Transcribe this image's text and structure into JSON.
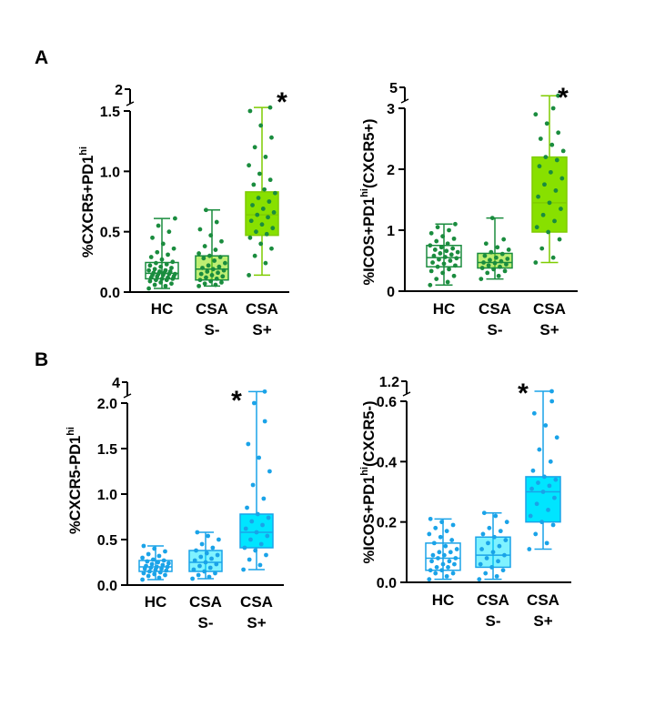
{
  "panels": [
    {
      "letter": "A"
    },
    {
      "letter": "B"
    }
  ],
  "colors": {
    "dark_green": "#1a8c3e",
    "light_green": "#7fcc00",
    "light_green_fill": "#88e000",
    "blue": "#1aa3e8",
    "cyan_fill": "#00e5ff",
    "axis": "#000000"
  },
  "chart_data": [
    {
      "type": "box",
      "panel": "A",
      "ylabel": "%CXCR5+PD1",
      "ylabel_sup": "hi",
      "ylabel_suffix": "",
      "yticks": [
        "0.0",
        "0.5",
        "1.0",
        "1.5"
      ],
      "ytick_values": [
        0,
        0.5,
        1.0,
        1.5
      ],
      "ylim": [
        0,
        1.5
      ],
      "axis_break": {
        "from": 1.5,
        "to": 2,
        "label": "2"
      },
      "categories": [
        [
          "HC"
        ],
        [
          "CSA",
          "S-"
        ],
        [
          "CSA",
          "S+"
        ]
      ],
      "groups": [
        {
          "min": 0.03,
          "q1": 0.11,
          "median": 0.155,
          "q3": 0.245,
          "max": 0.61,
          "style": "outline",
          "points": [
            0.03,
            0.05,
            0.06,
            0.07,
            0.08,
            0.09,
            0.1,
            0.1,
            0.11,
            0.11,
            0.12,
            0.12,
            0.13,
            0.13,
            0.14,
            0.14,
            0.15,
            0.15,
            0.15,
            0.16,
            0.16,
            0.17,
            0.17,
            0.18,
            0.18,
            0.19,
            0.2,
            0.21,
            0.22,
            0.23,
            0.24,
            0.25,
            0.27,
            0.29,
            0.31,
            0.33,
            0.36,
            0.4,
            0.45,
            0.5,
            0.55,
            0.61
          ]
        },
        {
          "min": 0.05,
          "q1": 0.1,
          "median": 0.19,
          "q3": 0.3,
          "max": 0.68,
          "style": "filled-light",
          "points": [
            0.05,
            0.06,
            0.07,
            0.08,
            0.09,
            0.1,
            0.11,
            0.12,
            0.13,
            0.14,
            0.15,
            0.16,
            0.17,
            0.18,
            0.19,
            0.2,
            0.21,
            0.22,
            0.24,
            0.26,
            0.28,
            0.29,
            0.3,
            0.32,
            0.35,
            0.38,
            0.42,
            0.47,
            0.52,
            0.58,
            0.68
          ]
        },
        {
          "min": 0.14,
          "q1": 0.47,
          "median": 0.64,
          "q3": 0.83,
          "max": 1.5,
          "style": "filled",
          "points": [
            0.14,
            0.24,
            0.3,
            0.36,
            0.4,
            0.45,
            0.48,
            0.5,
            0.53,
            0.56,
            0.59,
            0.62,
            0.64,
            0.66,
            0.69,
            0.72,
            0.75,
            0.78,
            0.82,
            0.85,
            0.89,
            0.93,
            0.98,
            1.05,
            1.12,
            1.2,
            1.28,
            1.38,
            1.5
          ],
          "broken_max": 1.58,
          "significance": "*"
        }
      ]
    },
    {
      "type": "box",
      "panel": "A",
      "ylabel": "%ICOS+PD1",
      "ylabel_sup": "hi",
      "ylabel_suffix": "(CXCR5+)",
      "yticks": [
        "0",
        "1",
        "2",
        "3"
      ],
      "ytick_values": [
        0,
        1,
        2,
        3
      ],
      "ylim": [
        0,
        3
      ],
      "axis_break": {
        "from": 3,
        "to": 5,
        "label": "5"
      },
      "categories": [
        [
          "HC"
        ],
        [
          "CSA",
          "S-"
        ],
        [
          "CSA",
          "S+"
        ]
      ],
      "groups": [
        {
          "min": 0.1,
          "q1": 0.4,
          "median": 0.55,
          "q3": 0.75,
          "max": 1.1,
          "style": "outline",
          "points": [
            0.1,
            0.15,
            0.2,
            0.25,
            0.3,
            0.33,
            0.36,
            0.4,
            0.42,
            0.45,
            0.47,
            0.5,
            0.52,
            0.54,
            0.56,
            0.58,
            0.6,
            0.62,
            0.64,
            0.66,
            0.68,
            0.7,
            0.72,
            0.75,
            0.78,
            0.82,
            0.86,
            0.9,
            0.95,
            1.0,
            1.05,
            1.1
          ]
        },
        {
          "min": 0.2,
          "q1": 0.38,
          "median": 0.47,
          "q3": 0.62,
          "max": 1.2,
          "style": "filled-light",
          "points": [
            0.2,
            0.25,
            0.3,
            0.33,
            0.36,
            0.38,
            0.4,
            0.42,
            0.44,
            0.46,
            0.47,
            0.49,
            0.51,
            0.53,
            0.55,
            0.58,
            0.61,
            0.64,
            0.68,
            0.72,
            0.78,
            0.85,
            1.2
          ]
        },
        {
          "min": 0.47,
          "q1": 0.97,
          "median": 1.45,
          "q3": 2.2,
          "max": 3.0,
          "style": "filled",
          "points": [
            0.47,
            0.55,
            0.7,
            0.85,
            0.97,
            1.05,
            1.15,
            1.25,
            1.35,
            1.45,
            1.55,
            1.65,
            1.75,
            1.85,
            1.95,
            2.05,
            2.15,
            2.2,
            2.3,
            2.4,
            2.5,
            2.6,
            2.75,
            2.9,
            3.0
          ],
          "broken_max": 4.2,
          "significance": "*"
        }
      ]
    },
    {
      "type": "box",
      "panel": "B",
      "ylabel": "%CXCR5-PD1",
      "ylabel_sup": "hi",
      "ylabel_suffix": "",
      "yticks": [
        "0.0",
        "0.5",
        "1.0",
        "1.5",
        "2.0"
      ],
      "ytick_values": [
        0,
        0.5,
        1.0,
        1.5,
        2.0
      ],
      "ylim": [
        0,
        2.0
      ],
      "axis_break": {
        "from": 2.0,
        "to": 4,
        "label": "4"
      },
      "categories": [
        [
          "HC"
        ],
        [
          "CSA",
          "S-"
        ],
        [
          "CSA",
          "S+"
        ]
      ],
      "groups": [
        {
          "min": 0.06,
          "q1": 0.15,
          "median": 0.2,
          "q3": 0.27,
          "max": 0.43,
          "style": "outline",
          "points": [
            0.06,
            0.08,
            0.1,
            0.11,
            0.12,
            0.13,
            0.14,
            0.15,
            0.16,
            0.17,
            0.18,
            0.18,
            0.19,
            0.2,
            0.2,
            0.21,
            0.22,
            0.23,
            0.24,
            0.25,
            0.26,
            0.27,
            0.28,
            0.3,
            0.32,
            0.34,
            0.37,
            0.4,
            0.43
          ]
        },
        {
          "min": 0.07,
          "q1": 0.15,
          "median": 0.25,
          "q3": 0.38,
          "max": 0.58,
          "style": "filled-light",
          "points": [
            0.07,
            0.09,
            0.11,
            0.13,
            0.15,
            0.17,
            0.19,
            0.21,
            0.23,
            0.25,
            0.27,
            0.29,
            0.31,
            0.33,
            0.35,
            0.38,
            0.41,
            0.45,
            0.5,
            0.54,
            0.58
          ]
        },
        {
          "min": 0.17,
          "q1": 0.41,
          "median": 0.58,
          "q3": 0.78,
          "max": 2.0,
          "style": "filled",
          "points": [
            0.17,
            0.22,
            0.28,
            0.33,
            0.38,
            0.41,
            0.45,
            0.5,
            0.54,
            0.58,
            0.62,
            0.66,
            0.7,
            0.74,
            0.78,
            0.85,
            0.95,
            1.1,
            1.25,
            1.4,
            1.55,
            1.8,
            2.0
          ],
          "broken_max": 3.1,
          "significance": "*"
        }
      ]
    },
    {
      "type": "box",
      "panel": "B",
      "ylabel": "%ICOS+PD1",
      "ylabel_sup": "hi",
      "ylabel_suffix": "(CXCR5-)",
      "yticks": [
        "0.0",
        "0.2",
        "0.4",
        "0.6"
      ],
      "ytick_values": [
        0,
        0.2,
        0.4,
        0.6
      ],
      "ylim": [
        0,
        0.6
      ],
      "axis_break": {
        "from": 0.6,
        "to": 1.2,
        "label": "1.2"
      },
      "categories": [
        [
          "HC"
        ],
        [
          "CSA",
          "S-"
        ],
        [
          "CSA",
          "S+"
        ]
      ],
      "groups": [
        {
          "min": 0.01,
          "q1": 0.04,
          "median": 0.08,
          "q3": 0.13,
          "max": 0.21,
          "style": "outline",
          "points": [
            0.01,
            0.02,
            0.03,
            0.03,
            0.04,
            0.04,
            0.05,
            0.05,
            0.06,
            0.06,
            0.07,
            0.07,
            0.08,
            0.08,
            0.09,
            0.09,
            0.1,
            0.1,
            0.11,
            0.12,
            0.13,
            0.14,
            0.15,
            0.16,
            0.17,
            0.18,
            0.19,
            0.2,
            0.21
          ]
        },
        {
          "min": 0.01,
          "q1": 0.05,
          "median": 0.09,
          "q3": 0.15,
          "max": 0.23,
          "style": "filled-light",
          "points": [
            0.01,
            0.02,
            0.03,
            0.04,
            0.05,
            0.06,
            0.07,
            0.08,
            0.09,
            0.1,
            0.11,
            0.12,
            0.13,
            0.14,
            0.15,
            0.16,
            0.17,
            0.18,
            0.2,
            0.22,
            0.23
          ]
        },
        {
          "min": 0.11,
          "q1": 0.2,
          "median": 0.3,
          "q3": 0.35,
          "max": 0.6,
          "style": "filled",
          "points": [
            0.11,
            0.13,
            0.16,
            0.19,
            0.2,
            0.22,
            0.24,
            0.26,
            0.28,
            0.3,
            0.31,
            0.32,
            0.33,
            0.34,
            0.35,
            0.37,
            0.4,
            0.44,
            0.48,
            0.52,
            0.56,
            0.6
          ],
          "broken_max": 0.9,
          "significance": "*"
        }
      ]
    }
  ]
}
